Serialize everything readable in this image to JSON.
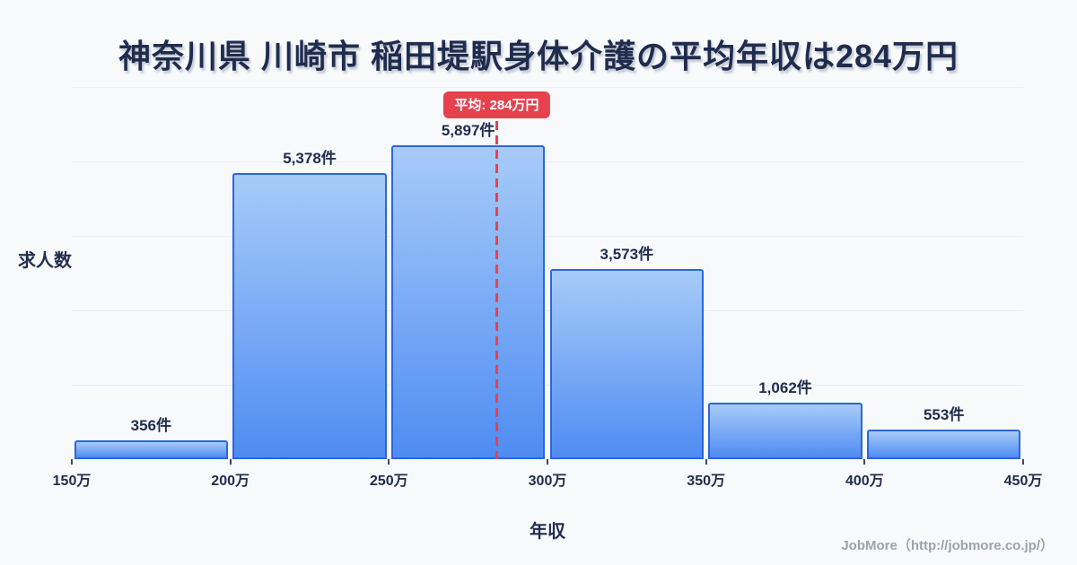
{
  "title": "神奈川県 川崎市 稲田堤駅身体介護の平均年収は284万円",
  "axes": {
    "y_label": "求人数",
    "x_label": "年収"
  },
  "footer": {
    "credit": "JobMore（http://jobmore.co.jp/）"
  },
  "colors": {
    "background": "#f7f9fb",
    "text-dark": "#1f2c4d",
    "bar-top": "#a7cbf8",
    "bar-bottom": "#4f8cf2",
    "bar-border": "#2b66dd",
    "gridline": "#e9edf4",
    "average-red": "#e5424d",
    "footer-gray": "#9ca3af"
  },
  "chart_data": {
    "type": "bar",
    "subtype": "histogram",
    "title": "神奈川県 川崎市 稲田堤駅身体介護の平均年収は284万円",
    "xlabel": "年収",
    "ylabel": "求人数",
    "bin_edge_labels": [
      "150万",
      "200万",
      "250万",
      "300万",
      "350万",
      "400万",
      "450万"
    ],
    "bin_edges": [
      150,
      200,
      250,
      300,
      350,
      400,
      450
    ],
    "values": [
      356,
      5378,
      5897,
      3573,
      1062,
      553
    ],
    "value_labels": [
      "356件",
      "5,378件",
      "5,897件",
      "3,573件",
      "1,062件",
      "553件"
    ],
    "average": 284,
    "average_label": "平均: 284万円",
    "xlim": [
      150,
      450
    ],
    "ylim": [
      0,
      7000
    ],
    "y_gridlines": [
      1400,
      2800,
      4200,
      5600,
      7000
    ],
    "grid": "horizontal",
    "legend": false
  }
}
